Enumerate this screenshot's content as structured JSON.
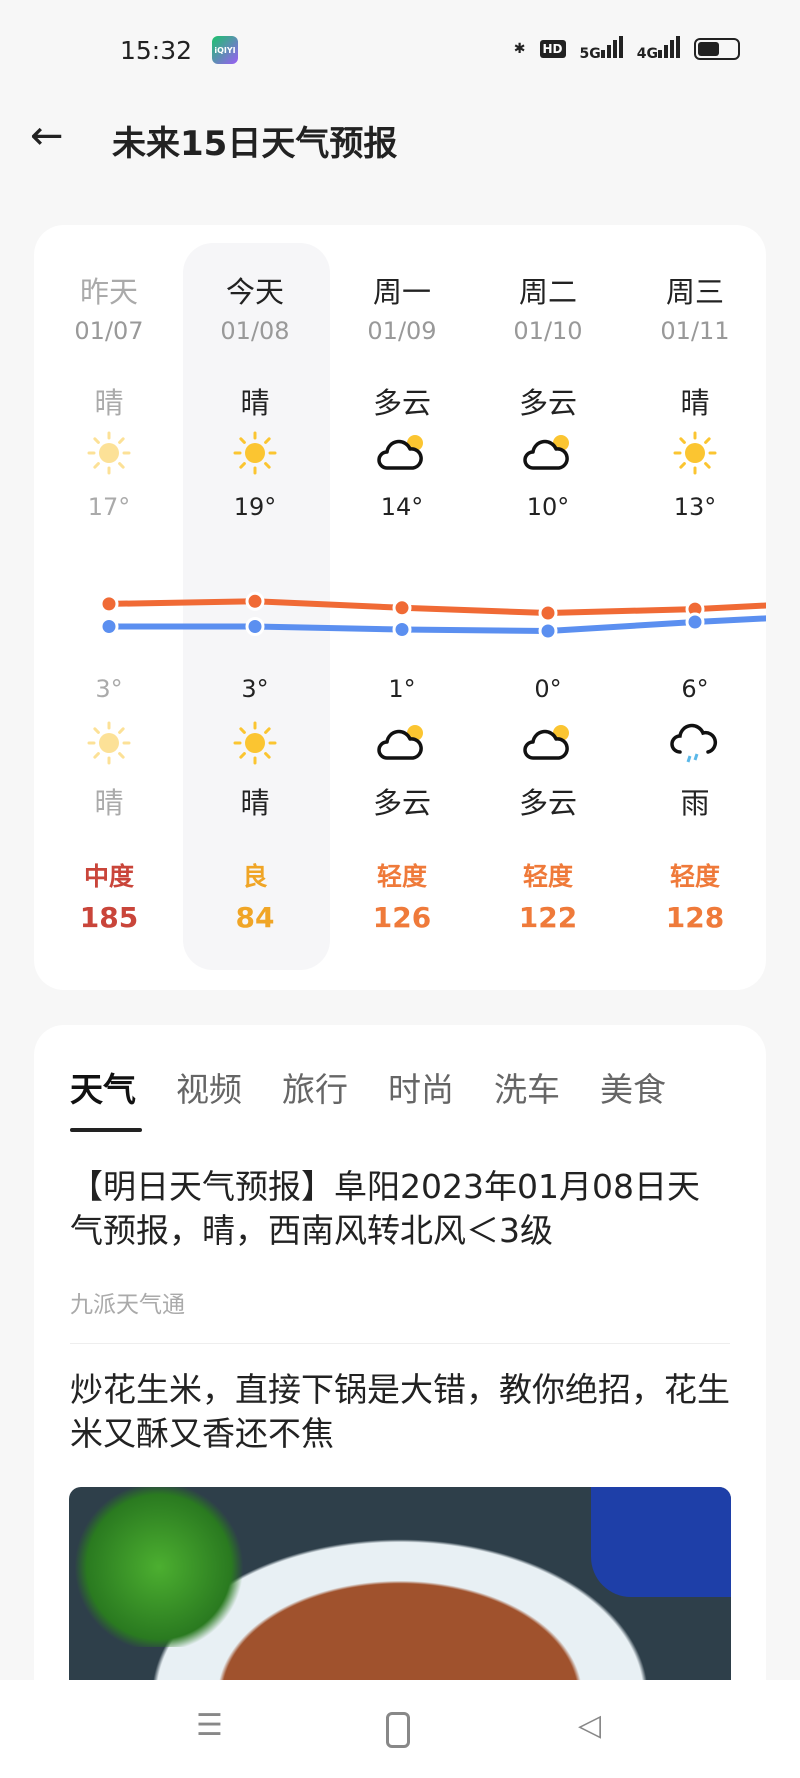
{
  "status": {
    "time": "15:32",
    "app_icon": "iQIYI",
    "hd": "HD",
    "net1": "5G",
    "net2": "4G",
    "battery_level": 0.55
  },
  "header": {
    "back_icon": "arrow-left-icon",
    "title": "未来15日天气预报"
  },
  "forecast": {
    "days": [
      {
        "name": "昨天",
        "date": "01/07",
        "day_cond": "晴",
        "day_icon": "sun",
        "high": "17°",
        "low": "3°",
        "night_icon": "sun",
        "night_cond": "晴",
        "aqi_label": "中度",
        "aqi": "185",
        "aqi_color": "#c9453a",
        "past": true
      },
      {
        "name": "今天",
        "date": "01/08",
        "day_cond": "晴",
        "day_icon": "sun",
        "high": "19°",
        "low": "3°",
        "night_icon": "sun",
        "night_cond": "晴",
        "aqi_label": "良",
        "aqi": "84",
        "aqi_color": "#f0a526",
        "today": true
      },
      {
        "name": "周一",
        "date": "01/09",
        "day_cond": "多云",
        "day_icon": "cloud",
        "high": "14°",
        "low": "1°",
        "night_icon": "cloud",
        "night_cond": "多云",
        "aqi_label": "轻度",
        "aqi": "126",
        "aqi_color": "#ef7a3a"
      },
      {
        "name": "周二",
        "date": "01/10",
        "day_cond": "多云",
        "day_icon": "cloud",
        "high": "10°",
        "low": "0°",
        "night_icon": "cloud",
        "night_cond": "多云",
        "aqi_label": "轻度",
        "aqi": "122",
        "aqi_color": "#ef7a3a"
      },
      {
        "name": "周三",
        "date": "01/11",
        "day_cond": "晴",
        "day_icon": "sun",
        "high": "13°",
        "low": "6°",
        "night_icon": "rain",
        "night_cond": "雨",
        "aqi_label": "轻度",
        "aqi": "128",
        "aqi_color": "#ef7a3a"
      }
    ],
    "high_values": [
      17,
      19,
      14,
      10,
      13
    ],
    "low_values": [
      3,
      3,
      1,
      0,
      6
    ],
    "high_color": "#f06a35",
    "low_color": "#5b8ff0"
  },
  "feed": {
    "tabs": [
      "天气",
      "视频",
      "旅行",
      "时尚",
      "洗车",
      "美食"
    ],
    "articles": [
      {
        "title": "【明日天气预报】阜阳2023年01月08日天气预报，晴，西南风转北风＜3级",
        "source": "九派天气通"
      },
      {
        "title": "炒花生米，直接下锅是大错，教你绝招，花生米又酥又香还不焦"
      }
    ]
  },
  "nav": {
    "menu_icon": "menu-icon",
    "home_icon": "home-icon",
    "back_icon": "back-triangle-icon"
  }
}
